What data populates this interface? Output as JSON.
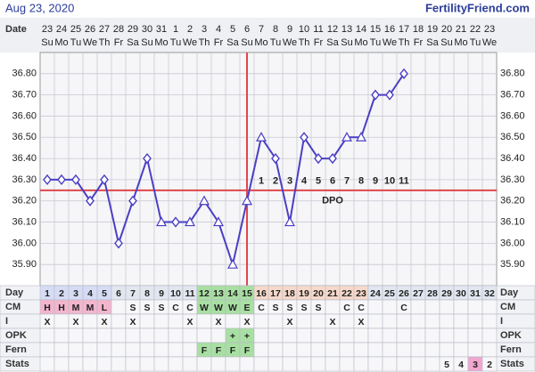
{
  "header": {
    "date": "Aug 23, 2020",
    "site": "FertilityFriend.com"
  },
  "chart_data": {
    "type": "line",
    "date_label": "Date",
    "categories": [
      "23",
      "24",
      "25",
      "26",
      "27",
      "28",
      "29",
      "30",
      "31",
      "1",
      "2",
      "3",
      "4",
      "5",
      "6",
      "7",
      "8",
      "9",
      "10",
      "11",
      "12",
      "13",
      "14",
      "15",
      "16",
      "17",
      "18",
      "19",
      "20",
      "21",
      "22",
      "23"
    ],
    "weekdays": [
      "Su",
      "Mo",
      "Tu",
      "We",
      "Th",
      "Fr",
      "Sa",
      "Su",
      "Mo",
      "Tu",
      "We",
      "Th",
      "Fr",
      "Sa",
      "Su",
      "Mo",
      "Tu",
      "We",
      "Th",
      "Fr",
      "Sa",
      "Su",
      "Mo",
      "Tu",
      "We",
      "Th",
      "Fr",
      "Sa",
      "Su",
      "Mo",
      "Tu",
      "We"
    ],
    "series": [
      {
        "color": "#4b3fc4",
        "values": [
          36.3,
          36.3,
          36.3,
          36.2,
          36.3,
          36.0,
          36.2,
          36.4,
          36.1,
          36.1,
          36.1,
          36.2,
          36.1,
          35.9,
          36.2,
          36.5,
          36.4,
          36.1,
          36.5,
          36.4,
          36.4,
          36.5,
          36.5,
          36.7,
          36.7,
          36.8,
          null,
          null,
          null,
          null,
          null,
          null
        ],
        "markers": [
          "diamond",
          "diamond",
          "diamond",
          "diamond",
          "diamond",
          "diamond",
          "diamond",
          "diamond",
          "triangle",
          "diamond",
          "triangle",
          "triangle",
          "triangle",
          "triangle",
          "triangle",
          "triangle",
          "diamond",
          "triangle",
          "diamond",
          "diamond",
          "diamond",
          "triangle",
          "triangle",
          "diamond",
          "diamond",
          "diamond",
          null,
          null,
          null,
          null,
          null,
          null
        ]
      }
    ],
    "ylim": [
      35.8,
      36.9
    ],
    "yticks": [
      {
        "value": 35.9,
        "label": "35.90"
      },
      {
        "value": 36.0,
        "label": "36.00"
      },
      {
        "value": 36.1,
        "label": "36.10"
      },
      {
        "value": 36.2,
        "label": "36.20"
      },
      {
        "value": 36.3,
        "label": "36.30"
      },
      {
        "value": 36.4,
        "label": "36.40"
      },
      {
        "value": 36.5,
        "label": "36.50"
      },
      {
        "value": 36.6,
        "label": "36.60"
      },
      {
        "value": 36.7,
        "label": "36.70"
      },
      {
        "value": 36.8,
        "label": "36.80"
      }
    ],
    "grid": true,
    "coverline": 36.25,
    "ovulation_day": 15,
    "marker_color": "#e0474c",
    "dpo": [
      null,
      null,
      null,
      null,
      null,
      null,
      null,
      null,
      null,
      null,
      null,
      null,
      null,
      null,
      null,
      1,
      2,
      3,
      4,
      5,
      6,
      7,
      8,
      9,
      10,
      11,
      null,
      null,
      null,
      null,
      null,
      null
    ],
    "dpo_label": "DPO"
  },
  "table": {
    "row_labels": [
      "Day",
      "CM",
      "I",
      "OPK",
      "Fern",
      "Stats"
    ],
    "day": [
      1,
      2,
      3,
      4,
      5,
      6,
      7,
      8,
      9,
      10,
      11,
      12,
      13,
      14,
      15,
      16,
      17,
      18,
      19,
      20,
      21,
      22,
      23,
      24,
      25,
      26,
      27,
      28,
      29,
      30,
      31,
      32
    ],
    "day_colors": [
      "#d6dcf4",
      "#d6dcf4",
      "#d6dcf4",
      "#d6dcf4",
      "#d6dcf4",
      "#e1e6ef",
      "#e1e6ef",
      "#e1e6ef",
      "#e1e6ef",
      "#e1e6ef",
      "#e1e6ef",
      "#a8dfa2",
      "#a8dfa2",
      "#a8dfa2",
      "#a8dfa2",
      "#f6d9ca",
      "#f6d9ca",
      "#f6d9ca",
      "#f6d9ca",
      "#f6d9ca",
      "#f6d9ca",
      "#f6d9ca",
      "#f6d9ca",
      "#e1e6ef",
      "#e1e6ef",
      "#e1e6ef",
      "#e1e6ef",
      "#e1e6ef",
      "#e1e6ef",
      "#e1e6ef",
      "#e1e6ef",
      "#e1e6ef"
    ],
    "cm": [
      "H",
      "H",
      "M",
      "M",
      "L",
      null,
      "S",
      "S",
      "S",
      "C",
      "C",
      "W",
      "W",
      "W",
      "E",
      "C",
      "S",
      "S",
      "S",
      "S",
      null,
      "C",
      "C",
      null,
      null,
      "C",
      null,
      null,
      null,
      null,
      null,
      null
    ],
    "cm_colors": {
      "H": "#f3b5cd",
      "M": "#f3b5cd",
      "L": "#f3b5cd",
      "W": "#a8dfa2",
      "E": "#a8dfa2"
    },
    "i": [
      "X",
      null,
      "X",
      null,
      "X",
      null,
      "X",
      null,
      null,
      null,
      "X",
      null,
      "X",
      null,
      "X",
      null,
      null,
      "X",
      null,
      null,
      "X",
      null,
      "X",
      null,
      null,
      null,
      null,
      null,
      null,
      null,
      null,
      null
    ],
    "opk": [
      null,
      null,
      null,
      null,
      null,
      null,
      null,
      null,
      null,
      null,
      null,
      null,
      null,
      "+",
      "+",
      null,
      null,
      null,
      null,
      null,
      null,
      null,
      null,
      null,
      null,
      null,
      null,
      null,
      null,
      null,
      null,
      null
    ],
    "fern": [
      null,
      null,
      null,
      null,
      null,
      null,
      null,
      null,
      null,
      null,
      null,
      "F",
      "F",
      "F",
      "F",
      null,
      null,
      null,
      null,
      null,
      null,
      null,
      null,
      null,
      null,
      null,
      null,
      null,
      null,
      null,
      null,
      null
    ],
    "mark_color": "#a8dfa2",
    "stats": [
      null,
      null,
      null,
      null,
      null,
      null,
      null,
      null,
      null,
      null,
      null,
      null,
      null,
      null,
      null,
      null,
      null,
      null,
      null,
      null,
      null,
      null,
      null,
      null,
      null,
      null,
      null,
      null,
      5,
      4,
      3,
      2
    ],
    "stats_highlight": 3,
    "stats_highlight_color": "#f0a6d0"
  }
}
